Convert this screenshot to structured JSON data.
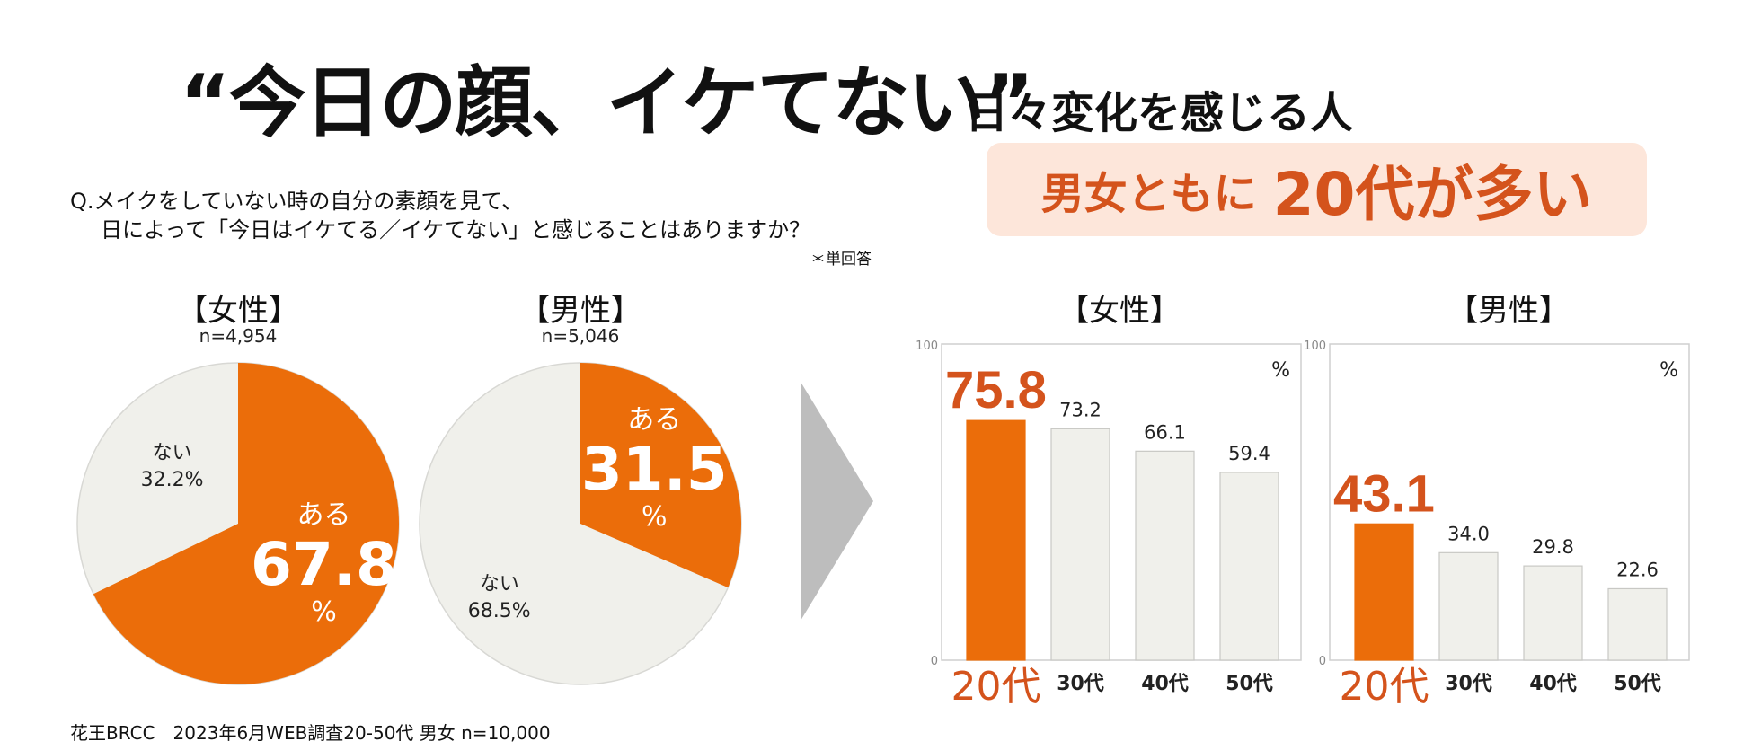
{
  "header": {
    "title": "“今日の顔、イケてない”",
    "subtitle": "日々変化を感じる人"
  },
  "callout": {
    "part1": "男女ともに",
    "part2": "20代が多い"
  },
  "question": {
    "line1": "Q.メイクをしていない時の自分の素顔を見て、",
    "line2": "日によって「今日はイケてる／イケてない」と感じることはありますか？",
    "note": "＊単回答"
  },
  "footer": "花王BRCC　2023年6月WEB調査20-50代 男女 n=10,000",
  "colors": {
    "accent": "#eb6d0a",
    "accent_text": "#d4531c",
    "neutral": "#f0f0eb",
    "callout_bg": "#fde6da",
    "arrow": "#bdbdbd"
  },
  "arrow_icon": "right-triangle-arrow",
  "chart_data": [
    {
      "type": "pie",
      "title": "【女性】",
      "n_label": "n=4,954",
      "slices": [
        {
          "label": "ある",
          "value": 67.8,
          "unit": "%"
        },
        {
          "label": "ない",
          "value": 32.2,
          "display": "32.2%"
        }
      ]
    },
    {
      "type": "pie",
      "title": "【男性】",
      "n_label": "n=5,046",
      "slices": [
        {
          "label": "ある",
          "value": 31.5,
          "unit": "%"
        },
        {
          "label": "ない",
          "value": 68.5,
          "display": "68.5%"
        }
      ]
    },
    {
      "type": "bar",
      "title": "【女性】",
      "unit": "%",
      "ylim": [
        0,
        100
      ],
      "yticks": [
        "0",
        "100"
      ],
      "categories": [
        "20代",
        "30代",
        "40代",
        "50代"
      ],
      "values": [
        75.8,
        73.2,
        66.1,
        59.4
      ],
      "labels": [
        "75.8",
        "73.2",
        "66.1",
        "59.4"
      ],
      "highlight": 0
    },
    {
      "type": "bar",
      "title": "【男性】",
      "unit": "%",
      "ylim": [
        0,
        100
      ],
      "yticks": [
        "0",
        "100"
      ],
      "categories": [
        "20代",
        "30代",
        "40代",
        "50代"
      ],
      "values": [
        43.1,
        34.0,
        29.8,
        22.6
      ],
      "labels": [
        "43.1",
        "34.0",
        "29.8",
        "22.6"
      ],
      "highlight": 0
    }
  ]
}
